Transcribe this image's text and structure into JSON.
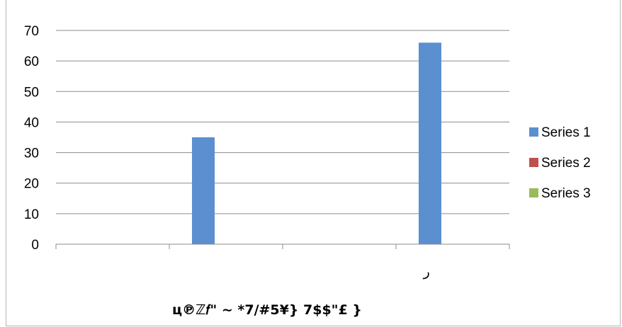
{
  "chart_data": {
    "type": "bar",
    "categories": [
      "",
      "",
      "",
      "ر"
    ],
    "series": [
      {
        "name": "Series 1",
        "values": [
          null,
          35,
          null,
          66
        ],
        "color": "#5b8fd0"
      },
      {
        "name": "Series 2",
        "values": [
          null,
          null,
          null,
          null
        ],
        "color": "#c0504d"
      },
      {
        "name": "Series 3",
        "values": [
          null,
          null,
          null,
          null
        ],
        "color": "#9bbb59"
      }
    ],
    "title": "",
    "xlabel": "ц℗ℤ𝑓\" ~ *7/#5¥} 7$$\"£ }",
    "ylabel": "",
    "ylim": [
      0,
      70
    ],
    "yticks": [
      0,
      10,
      20,
      30,
      40,
      50,
      60,
      70
    ],
    "grid": true,
    "legend_position": "right"
  }
}
